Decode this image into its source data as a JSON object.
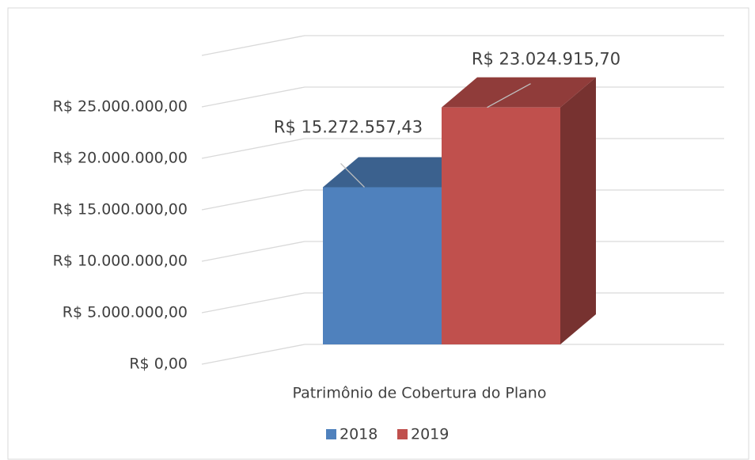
{
  "chart_data": {
    "type": "bar3d",
    "categories": [
      "Patrimônio de Cobertura do Plano"
    ],
    "series": [
      {
        "name": "2018",
        "color": "#4f81bd",
        "values": [
          15272557.43
        ],
        "value_labels": [
          "R$ 15.272.557,43"
        ]
      },
      {
        "name": "2019",
        "color": "#c0504d",
        "values": [
          23024915.7
        ],
        "value_labels": [
          "R$ 23.024.915,70"
        ]
      }
    ],
    "ylim": [
      0,
      30000000
    ],
    "yticks": [
      {
        "value": 0,
        "label": "R$ 0,00"
      },
      {
        "value": 5000000,
        "label": "R$ 5.000.000,00"
      },
      {
        "value": 10000000,
        "label": "R$ 10.000.000,00"
      },
      {
        "value": 15000000,
        "label": "R$ 15.000.000,00"
      },
      {
        "value": 20000000,
        "label": "R$ 20.000.000,00"
      },
      {
        "value": 25000000,
        "label": "R$ 25.000.000,00"
      }
    ],
    "grid": true,
    "legend": "bottom"
  }
}
